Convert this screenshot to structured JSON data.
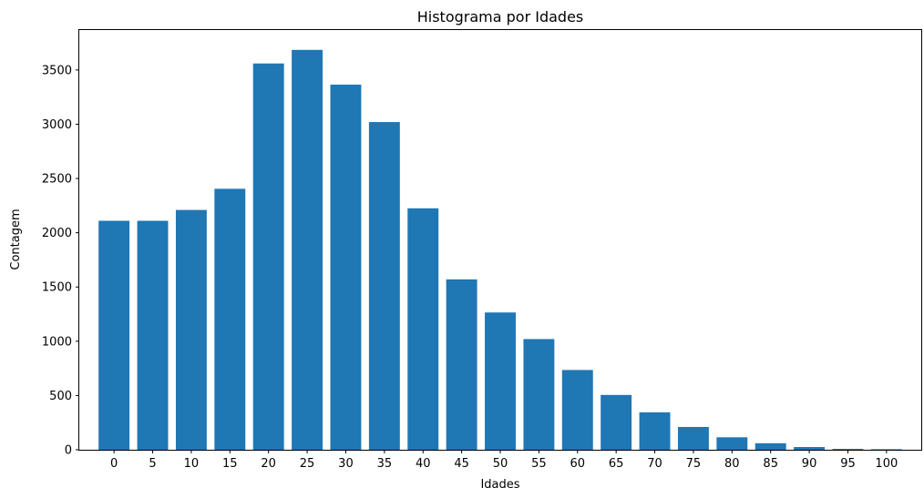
{
  "chart_data": {
    "type": "bar",
    "title": "Histograma por Idades",
    "xlabel": "Idades",
    "ylabel": "Contagem",
    "categories": [
      "0",
      "5",
      "10",
      "15",
      "20",
      "25",
      "30",
      "35",
      "40",
      "45",
      "50",
      "55",
      "60",
      "65",
      "70",
      "75",
      "80",
      "85",
      "90",
      "95",
      "100"
    ],
    "values": [
      2110,
      2110,
      2210,
      2405,
      3560,
      3685,
      3365,
      3020,
      2225,
      1570,
      1265,
      1020,
      735,
      505,
      345,
      210,
      115,
      60,
      25,
      8,
      5
    ],
    "ylim": [
      0,
      3868
    ],
    "yticks": [
      0,
      500,
      1000,
      1500,
      2000,
      2500,
      3000,
      3500
    ],
    "grid": false,
    "bar_color": "#1f77b4"
  }
}
